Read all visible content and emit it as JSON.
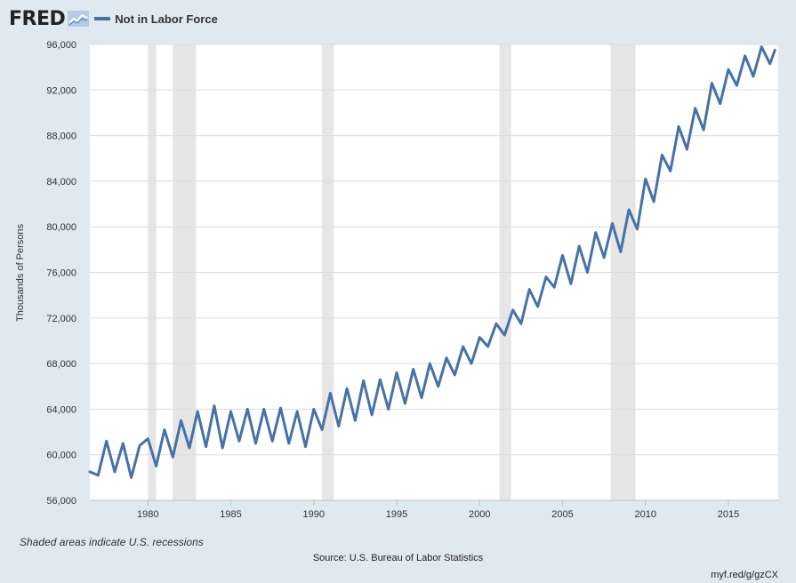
{
  "header": {
    "logo_text": "FRED",
    "logo_icon": "fred-chart-icon",
    "legend_label": "Not in Labor Force",
    "series_color": "#4572a7"
  },
  "footer": {
    "recession_note": "Shaded areas indicate U.S. recessions",
    "source": "Source: U.S. Bureau of Labor Statistics",
    "short_url": "myf.red/g/gzCX"
  },
  "chart_data": {
    "type": "line",
    "title": "",
    "xlabel": "",
    "ylabel": "Thousands of Persons",
    "xlim": [
      1976.5,
      2018.0
    ],
    "ylim": [
      56000,
      96000
    ],
    "y_ticks": [
      56000,
      60000,
      64000,
      68000,
      72000,
      76000,
      80000,
      84000,
      88000,
      92000,
      96000
    ],
    "y_tick_labels": [
      "56,000",
      "60,000",
      "64,000",
      "68,000",
      "72,000",
      "76,000",
      "80,000",
      "84,000",
      "88,000",
      "92,000",
      "96,000"
    ],
    "x_ticks": [
      1980,
      1985,
      1990,
      1995,
      2000,
      2005,
      2010,
      2015
    ],
    "x_tick_labels": [
      "1980",
      "1985",
      "1990",
      "1995",
      "2000",
      "2005",
      "2010",
      "2015"
    ],
    "grid": true,
    "legend_position": "top-left",
    "recessions": [
      [
        1980.0,
        1980.5
      ],
      [
        1981.5,
        1982.9
      ],
      [
        1990.5,
        1991.2
      ],
      [
        2001.2,
        2001.9
      ],
      [
        2007.9,
        2009.4
      ]
    ],
    "series": [
      {
        "name": "Not in Labor Force",
        "x": [
          1976.5,
          1977.0,
          1977.5,
          1978.0,
          1978.5,
          1979.0,
          1979.5,
          1980.0,
          1980.5,
          1981.0,
          1981.5,
          1982.0,
          1982.5,
          1983.0,
          1983.5,
          1984.0,
          1984.5,
          1985.0,
          1985.5,
          1986.0,
          1986.5,
          1987.0,
          1987.5,
          1988.0,
          1988.5,
          1989.0,
          1989.5,
          1990.0,
          1990.5,
          1991.0,
          1991.5,
          1992.0,
          1992.5,
          1993.0,
          1993.5,
          1994.0,
          1994.5,
          1995.0,
          1995.5,
          1996.0,
          1996.5,
          1997.0,
          1997.5,
          1998.0,
          1998.5,
          1999.0,
          1999.5,
          2000.0,
          2000.5,
          2001.0,
          2001.5,
          2002.0,
          2002.5,
          2003.0,
          2003.5,
          2004.0,
          2004.5,
          2005.0,
          2005.5,
          2006.0,
          2006.5,
          2007.0,
          2007.5,
          2008.0,
          2008.5,
          2009.0,
          2009.5,
          2010.0,
          2010.5,
          2011.0,
          2011.5,
          2012.0,
          2012.5,
          2013.0,
          2013.5,
          2014.0,
          2014.5,
          2015.0,
          2015.5,
          2016.0,
          2016.5,
          2017.0,
          2017.5,
          2017.8
        ],
        "values": [
          58500,
          58200,
          61200,
          58500,
          61000,
          58000,
          60800,
          61400,
          59000,
          62200,
          59800,
          63000,
          60600,
          63800,
          60700,
          64300,
          60600,
          63800,
          61200,
          64000,
          61000,
          64000,
          61200,
          64100,
          61000,
          63800,
          60700,
          64000,
          62200,
          65400,
          62500,
          65800,
          63000,
          66500,
          63500,
          66600,
          64000,
          67200,
          64500,
          67500,
          65000,
          68000,
          66000,
          68500,
          67000,
          69500,
          68000,
          70300,
          69500,
          71500,
          70500,
          72700,
          71500,
          74500,
          73000,
          75600,
          74700,
          77500,
          75000,
          78300,
          76000,
          79500,
          77300,
          80300,
          77800,
          81500,
          79800,
          84200,
          82200,
          86300,
          84900,
          88800,
          86800,
          90400,
          88500,
          92600,
          90800,
          93800,
          92400,
          95000,
          93200,
          95800,
          94300,
          95500
        ]
      }
    ]
  }
}
